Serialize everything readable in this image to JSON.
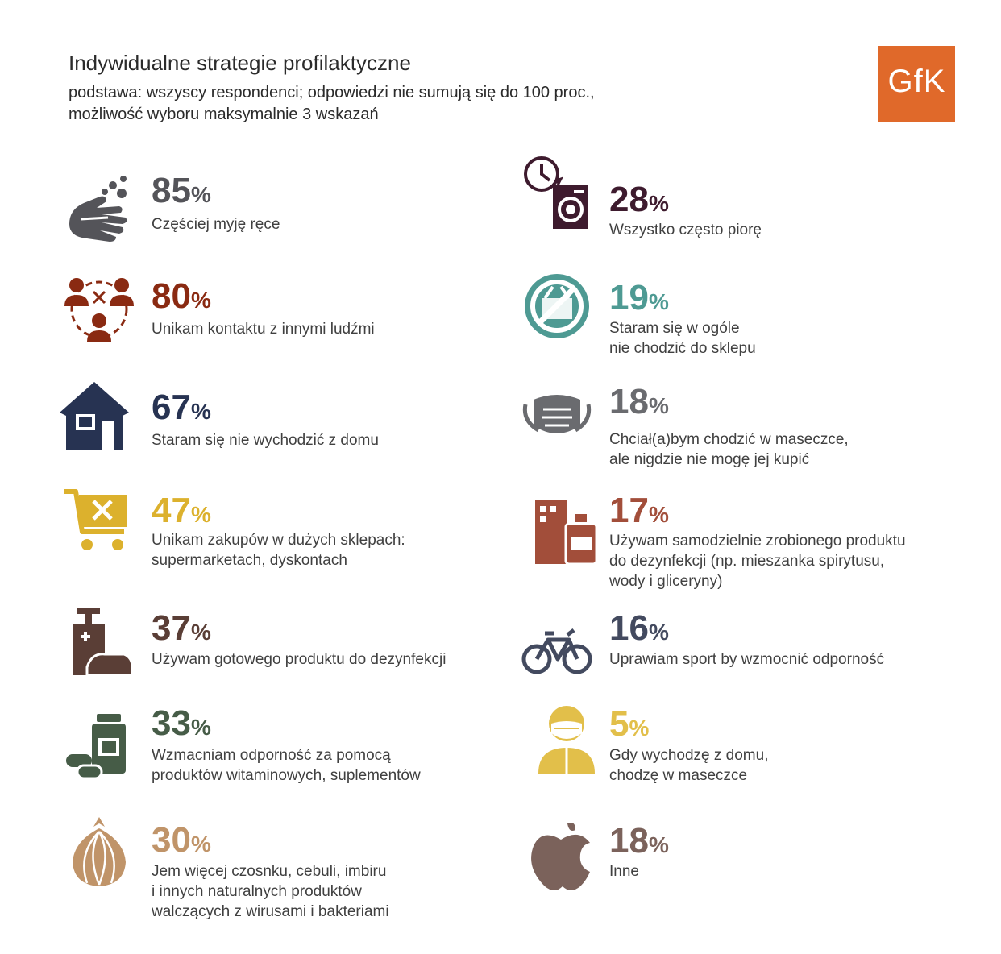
{
  "title": "Indywidualne strategie profilaktyczne",
  "subtitle_line1": "podstawa: wszyscy respondenci; odpowiedzi nie sumują się do 100 proc.,",
  "subtitle_line2": "możliwość wyboru maksymalnie 3 wskazań",
  "logo_text": "GfK",
  "logo_color": "#e0692a",
  "chart_data": {
    "type": "table",
    "title": "Indywidualne strategie profilaktyczne",
    "unit": "%",
    "items": [
      {
        "value": 85,
        "label_lines": [
          "Częściej myję ręce"
        ],
        "color": "#545459",
        "icon": "hand-washing-icon"
      },
      {
        "value": 80,
        "label_lines": [
          "Unikam kontaktu z innymi ludźmi"
        ],
        "color": "#8a2a12",
        "icon": "social-distancing-icon"
      },
      {
        "value": 67,
        "label_lines": [
          "Staram się nie wychodzić z domu"
        ],
        "color": "#273352",
        "icon": "house-icon"
      },
      {
        "value": 47,
        "label_lines": [
          "Unikam zakupów w dużych sklepach:",
          "supermarketach, dyskontach"
        ],
        "color": "#dcb12d",
        "icon": "shopping-cart-x-icon"
      },
      {
        "value": 37,
        "label_lines": [
          "Używam gotowego produktu do dezynfekcji"
        ],
        "color": "#5a3e36",
        "icon": "hand-sanitizer-icon"
      },
      {
        "value": 33,
        "label_lines": [
          "Wzmacniam odporność za pomocą",
          "produktów witaminowych, suplementów"
        ],
        "color": "#465c47",
        "icon": "vitamins-icon"
      },
      {
        "value": 30,
        "label_lines": [
          "Jem więcej czosnku, cebuli, imbiru",
          "i innych naturalnych produktów",
          "walczących z wirusami i bakteriami"
        ],
        "color": "#c09469",
        "icon": "onion-icon"
      },
      {
        "value": 28,
        "label_lines": [
          "Wszystko często piorę"
        ],
        "color": "#3e1b2e",
        "icon": "washing-machine-icon"
      },
      {
        "value": 19,
        "label_lines": [
          "Staram się w ogóle",
          "nie chodzić do sklepu"
        ],
        "color": "#4e9a93",
        "icon": "no-shopping-basket-icon"
      },
      {
        "value": 18,
        "label_lines": [
          "Chciał(a)bym chodzić w maseczce,",
          "ale nigdzie nie mogę jej kupić"
        ],
        "color": "#6a6b6f",
        "icon": "face-mask-icon"
      },
      {
        "value": 17,
        "label_lines": [
          "Używam samodzielnie zrobionego produktu",
          "do dezynfekcji (np. mieszanka spirytusu,",
          "wody i gliceryny)"
        ],
        "color": "#a24e3a",
        "icon": "homemade-disinfectant-icon"
      },
      {
        "value": 16,
        "label_lines": [
          "Uprawiam sport by wzmocnić odporność"
        ],
        "color": "#434a5f",
        "icon": "bicycle-icon"
      },
      {
        "value": 5,
        "label_lines": [
          "Gdy wychodzę z domu,",
          "chodzę w maseczce"
        ],
        "color": "#e2bf4a",
        "icon": "person-mask-icon"
      },
      {
        "value": 18,
        "label_lines": [
          "Inne"
        ],
        "color": "#7b625b",
        "icon": "apple-icon"
      }
    ]
  }
}
